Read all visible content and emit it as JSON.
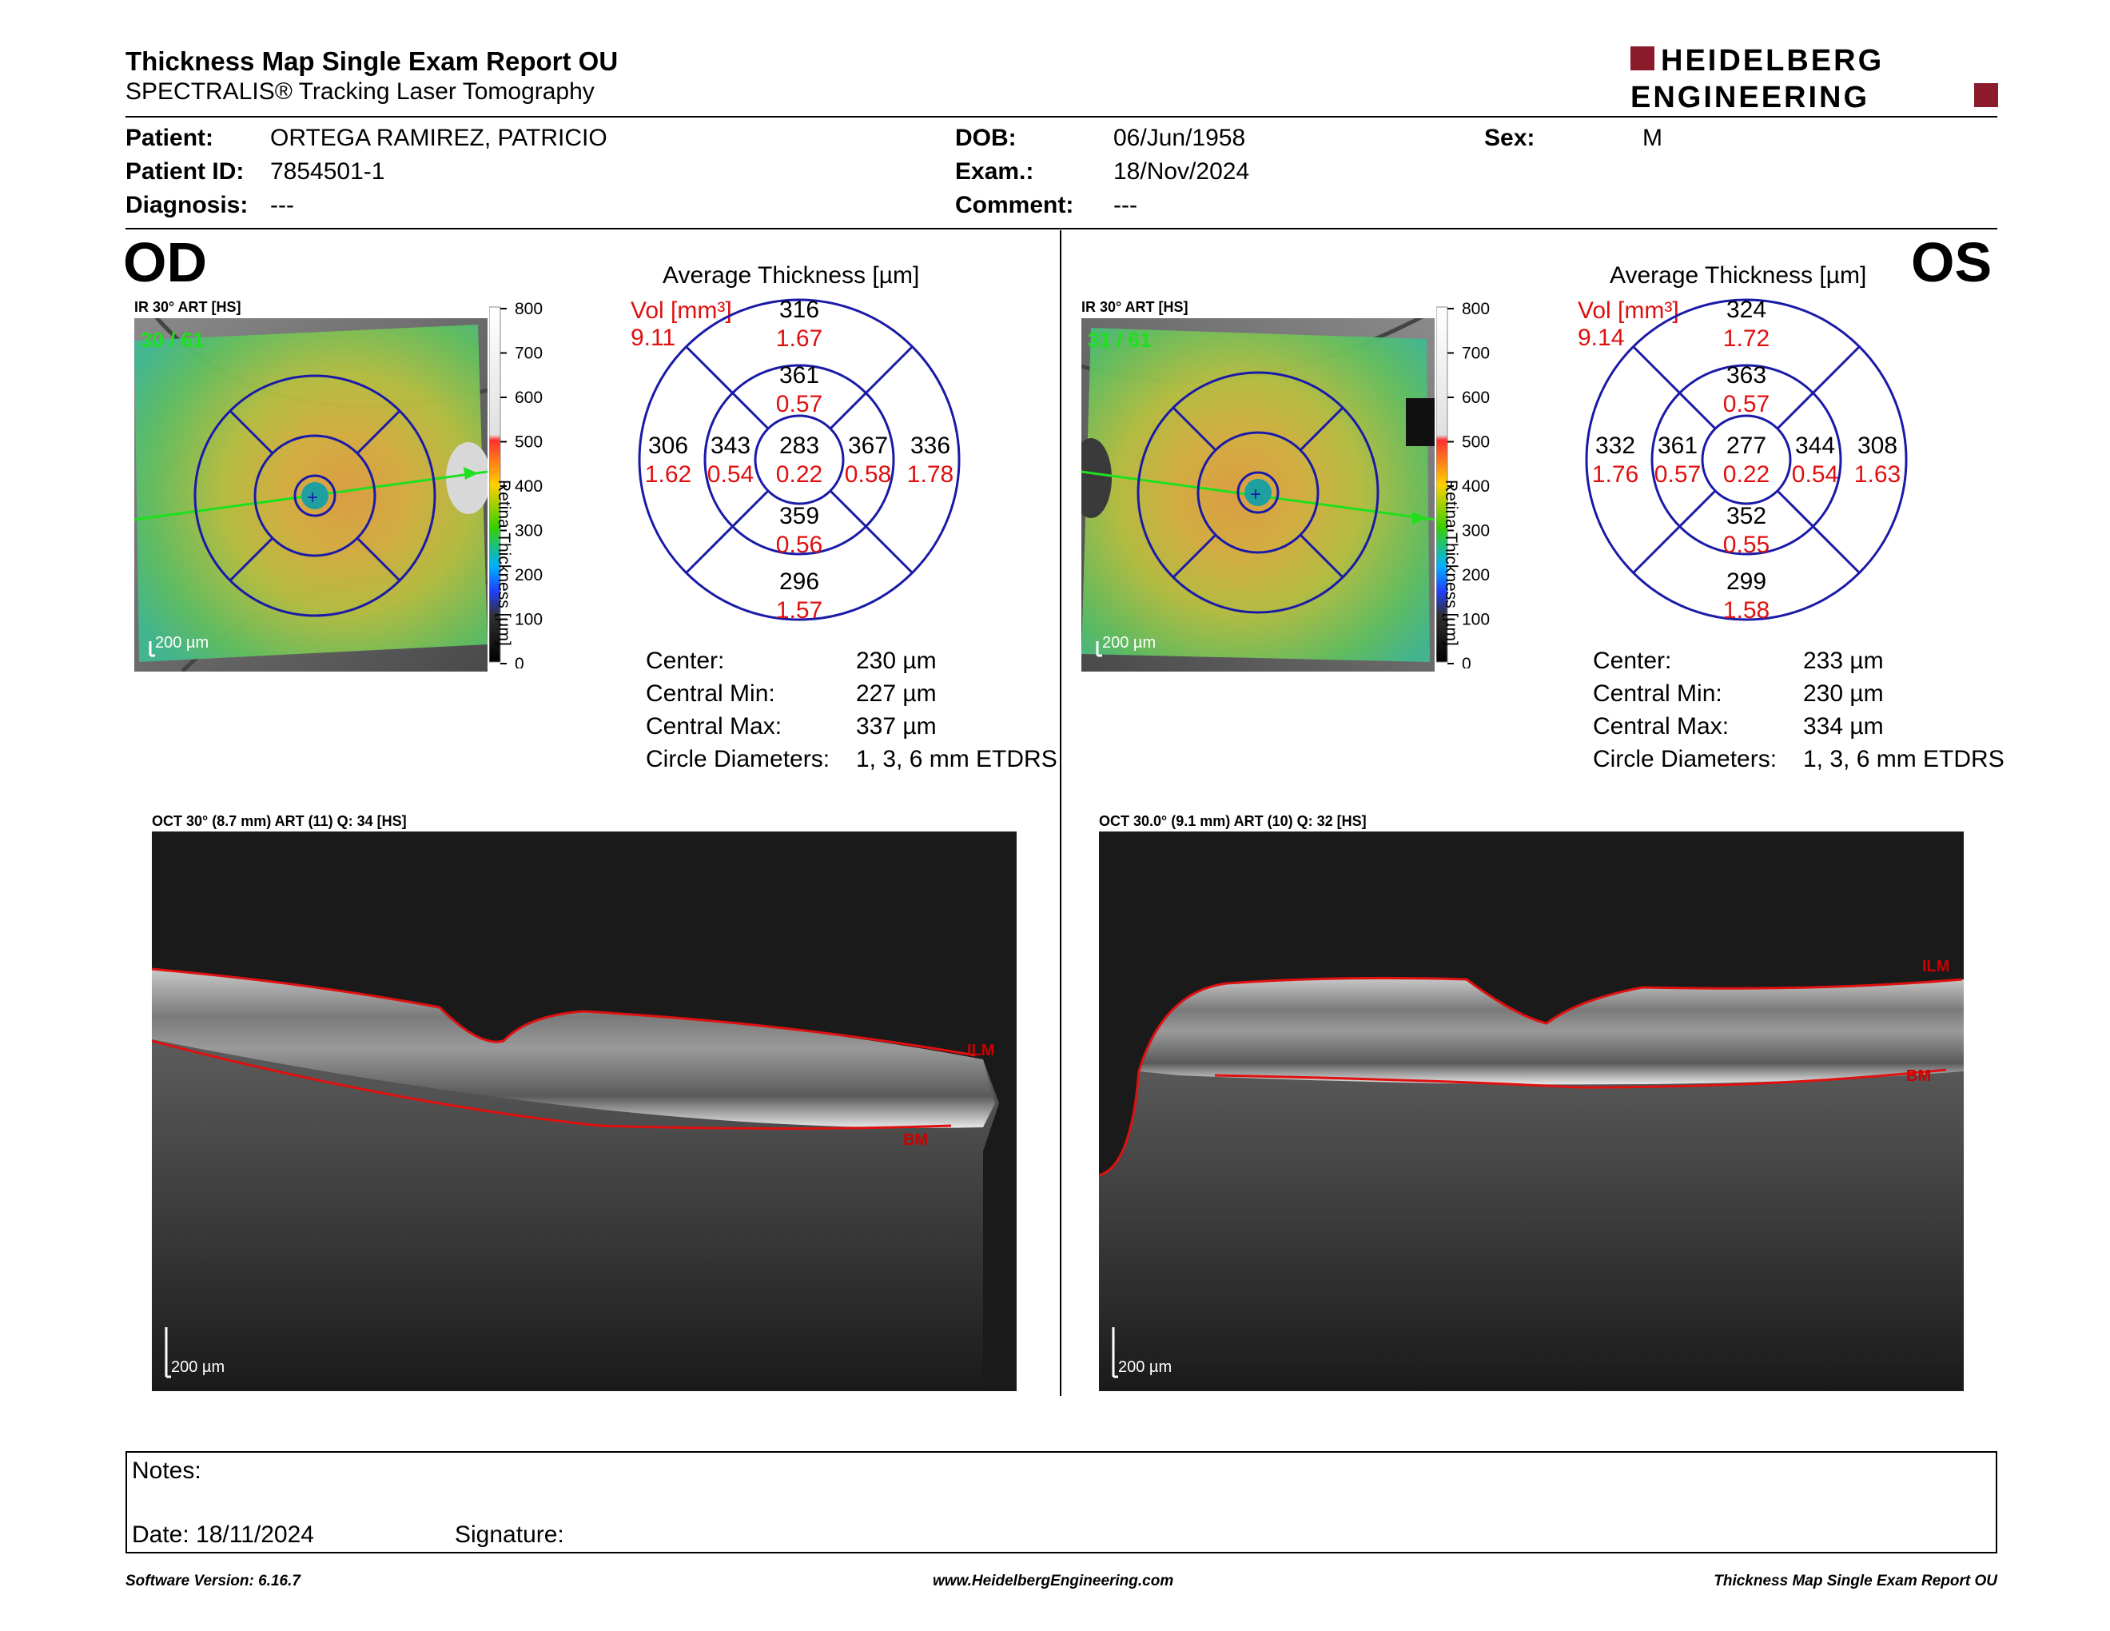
{
  "header": {
    "title": "Thickness Map Single Exam Report OU",
    "subtitle": "SPECTRALIS® Tracking Laser Tomography",
    "logo_line1": "HEIDELBERG",
    "logo_line2": "ENGINEERING"
  },
  "patient": {
    "patient_label": "Patient:",
    "patient_value": "ORTEGA RAMIREZ, PATRICIO",
    "id_label": "Patient ID:",
    "id_value": "7854501-1",
    "diagnosis_label": "Diagnosis:",
    "diagnosis_value": "---",
    "dob_label": "DOB:",
    "dob_value": "06/Jun/1958",
    "exam_label": "Exam.:",
    "exam_value": "18/Nov/2024",
    "comment_label": "Comment:",
    "comment_value": "---",
    "sex_label": "Sex:",
    "sex_value": "M"
  },
  "scale": {
    "ticks": [
      "800",
      "700",
      "600",
      "500",
      "400",
      "300",
      "200",
      "100",
      "0"
    ],
    "axis_label": "Retina Thickness [µm]",
    "colors": [
      "#ffffff",
      "#e0e0e0",
      "#ff3030",
      "#ffd000",
      "#38d000",
      "#00b0ff",
      "#2040ff",
      "#303030",
      "#000000"
    ]
  },
  "od": {
    "eye": "OD",
    "ir_label": "IR 30° ART [HS]",
    "frame": "30 / 61",
    "scalebar": "200 µm",
    "avg_title": "Average Thickness [µm]",
    "vol_label": "Vol [mm³]",
    "vol_value": "9.11",
    "sectors": {
      "center": {
        "t": "283",
        "v": "0.22"
      },
      "inner_sup": {
        "t": "361",
        "v": "0.57"
      },
      "inner_inf": {
        "t": "359",
        "v": "0.56"
      },
      "inner_left": {
        "t": "343",
        "v": "0.54"
      },
      "inner_right": {
        "t": "367",
        "v": "0.58"
      },
      "outer_sup": {
        "t": "316",
        "v": "1.67"
      },
      "outer_inf": {
        "t": "296",
        "v": "1.57"
      },
      "outer_left": {
        "t": "306",
        "v": "1.62"
      },
      "outer_right": {
        "t": "336",
        "v": "1.78"
      }
    },
    "stats": [
      {
        "label": "Center:",
        "value": "230 µm"
      },
      {
        "label": "Central Min:",
        "value": "227 µm"
      },
      {
        "label": "Central Max:",
        "value": "337 µm"
      },
      {
        "label": "Circle Diameters:",
        "value": "1, 3, 6 mm ETDRS"
      }
    ],
    "oct_label": "OCT 30° (8.7 mm) ART (11) Q: 34 [HS]",
    "oct_scalebar": "200 µm",
    "ilm": "ILM",
    "bm": "BM"
  },
  "os": {
    "eye": "OS",
    "ir_label": "IR 30° ART [HS]",
    "frame": "31 / 61",
    "scalebar": "200 µm",
    "avg_title": "Average Thickness [µm]",
    "vol_label": "Vol [mm³]",
    "vol_value": "9.14",
    "sectors": {
      "center": {
        "t": "277",
        "v": "0.22"
      },
      "inner_sup": {
        "t": "363",
        "v": "0.57"
      },
      "inner_inf": {
        "t": "352",
        "v": "0.55"
      },
      "inner_left": {
        "t": "361",
        "v": "0.57"
      },
      "inner_right": {
        "t": "344",
        "v": "0.54"
      },
      "outer_sup": {
        "t": "324",
        "v": "1.72"
      },
      "outer_inf": {
        "t": "299",
        "v": "1.58"
      },
      "outer_left": {
        "t": "332",
        "v": "1.76"
      },
      "outer_right": {
        "t": "308",
        "v": "1.63"
      }
    },
    "stats": [
      {
        "label": "Center:",
        "value": "233 µm"
      },
      {
        "label": "Central Min:",
        "value": "230 µm"
      },
      {
        "label": "Central Max:",
        "value": "334 µm"
      },
      {
        "label": "Circle Diameters:",
        "value": "1, 3, 6 mm ETDRS"
      }
    ],
    "oct_label": "OCT 30.0° (9.1 mm) ART (10) Q: 32 [HS]",
    "oct_scalebar": "200 µm",
    "ilm": "ILM",
    "bm": "BM"
  },
  "notes": {
    "notes_label": "Notes:",
    "date_label": "Date: 18/11/2024",
    "signature_label": "Signature:"
  },
  "footer": {
    "version": "Software Version: 6.16.7",
    "url": "www.HeidelbergEngineering.com",
    "report": "Thickness Map Single Exam Report OU"
  },
  "colors": {
    "accent_red": "#e01010",
    "etdrs_blue": "#1a1aa8",
    "logo_red": "#8b1a2b",
    "frame_green": "#1ee01e"
  }
}
